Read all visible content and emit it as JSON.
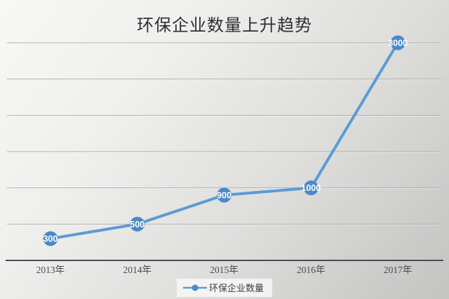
{
  "title": "环保企业数量上升趋势",
  "legend": {
    "label": "环保企业数量"
  },
  "colors": {
    "line": "#5b9bd5",
    "marker": "#4b89c8",
    "data_label_text": "#ffffff",
    "gridline": "#aaa9a7",
    "axis_line": "#4d4d4d",
    "tick_text": "#4c4c4c",
    "title_text": "#2f2f2f"
  },
  "chart_data": {
    "type": "line",
    "title": "环保企业数量上升趋势",
    "categories": [
      "2013年",
      "2014年",
      "2015年",
      "2016年",
      "2017年"
    ],
    "series": [
      {
        "name": "环保企业数量",
        "values": [
          300,
          500,
          900,
          1000,
          3000
        ]
      }
    ],
    "data_labels": [
      "300",
      "500",
      "900",
      "1000",
      "3000"
    ],
    "xlabel": "",
    "ylabel": "",
    "ylim": [
      0,
      3000
    ],
    "y_gridline_step": 500,
    "grid": true,
    "y_tick_labels_visible": false,
    "legend_position": "bottom",
    "marker": "circle-with-centered-label"
  }
}
